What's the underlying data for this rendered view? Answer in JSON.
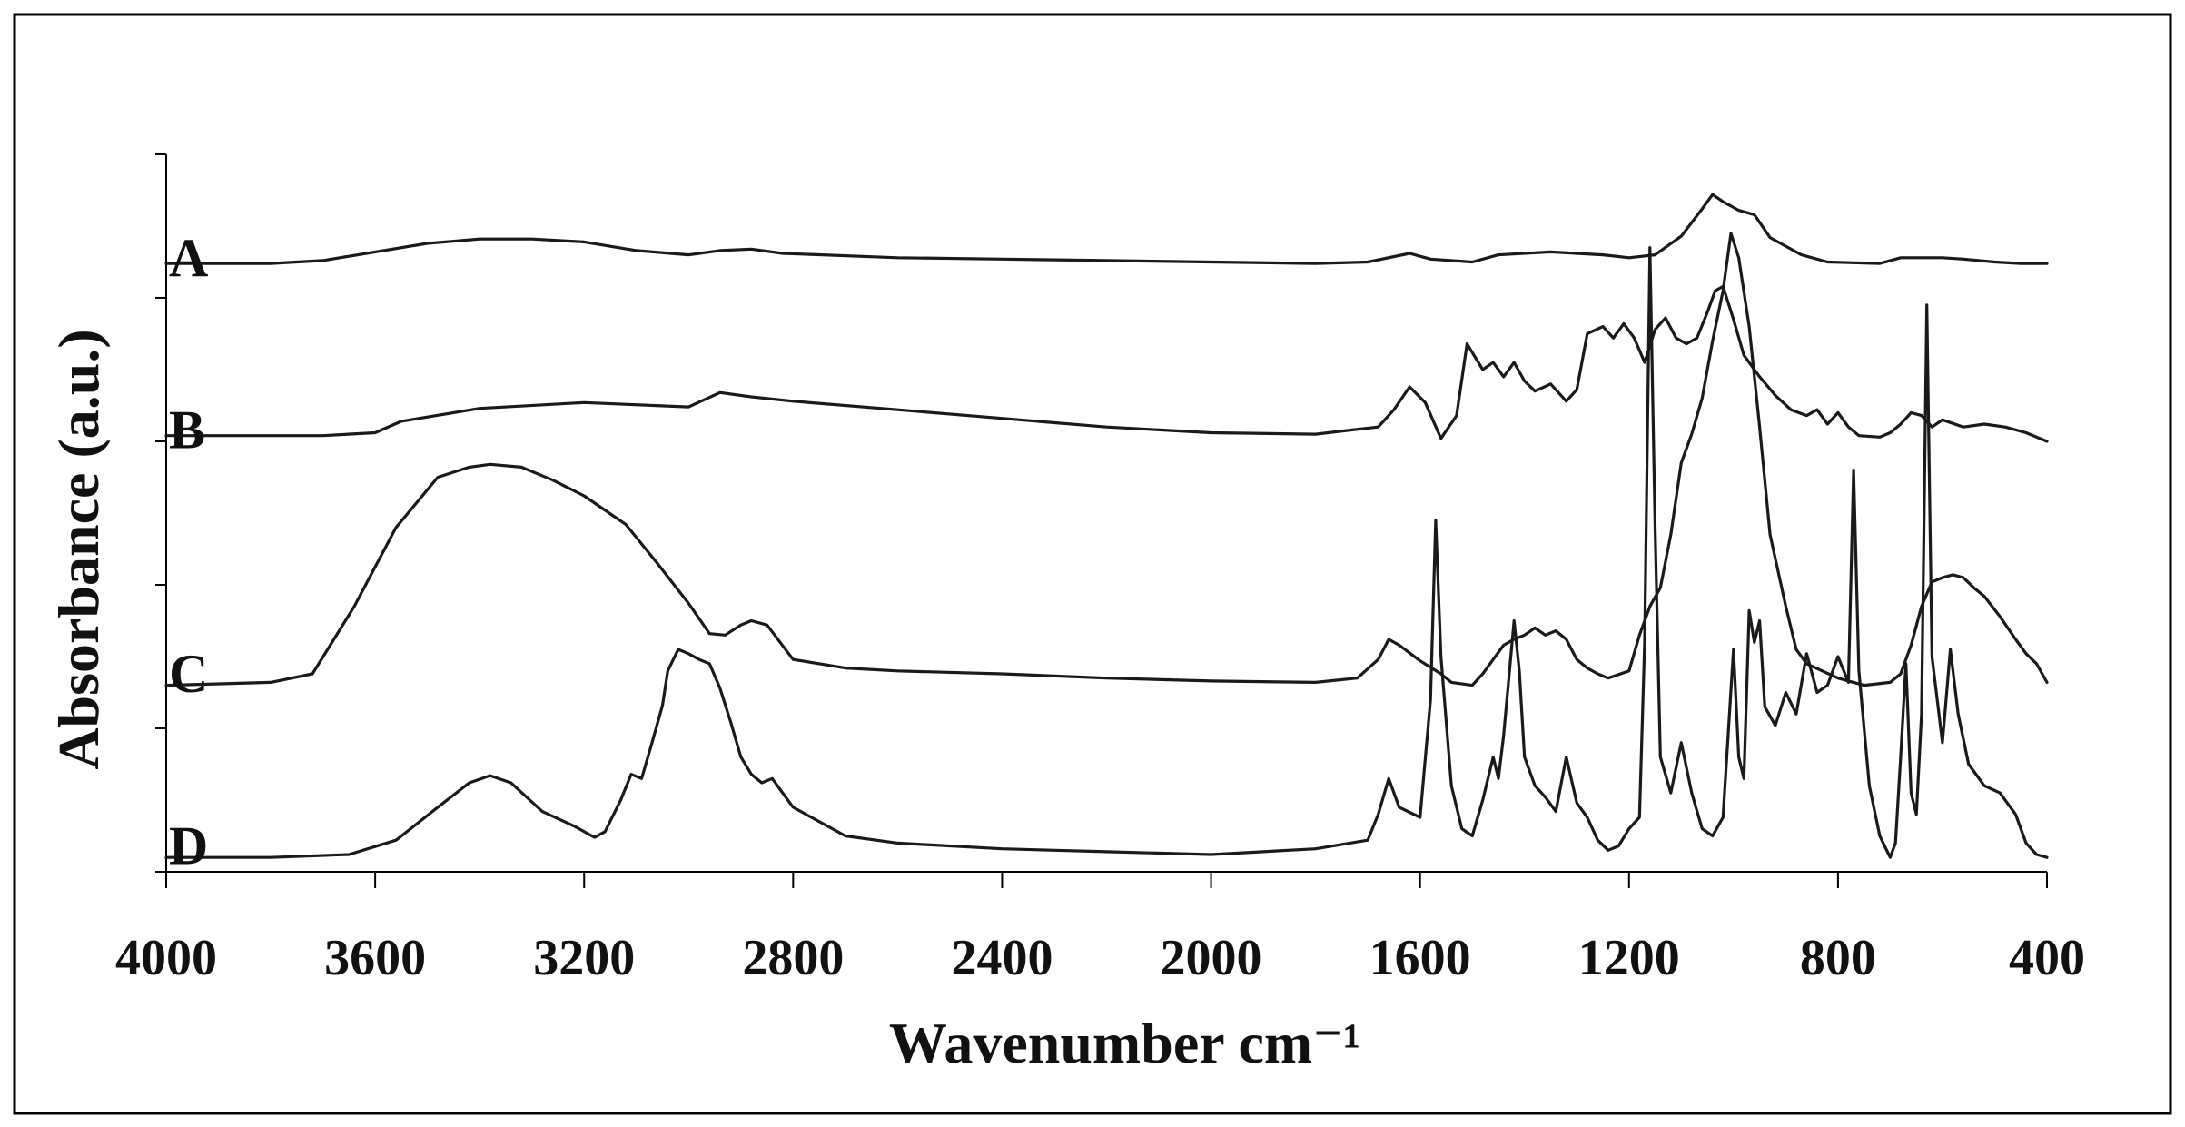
{
  "chart_data": {
    "type": "line",
    "title": "",
    "xlabel": "Wavenumber cm⁻¹",
    "ylabel": "Absorbance (a.u.)",
    "xlim": [
      4000,
      400
    ],
    "x_reversed": true,
    "x_ticks": [
      4000,
      3600,
      3200,
      2800,
      2400,
      2000,
      1600,
      1200,
      800,
      400
    ],
    "ylim": [
      0,
      5
    ],
    "y_ticks": [
      0,
      1,
      2,
      3,
      4,
      5
    ],
    "grid": false,
    "legend": "none",
    "series": [
      {
        "name": "A",
        "label_y": 4.28,
        "points": [
          [
            4000,
            4.24
          ],
          [
            3800,
            4.24
          ],
          [
            3700,
            4.26
          ],
          [
            3600,
            4.32
          ],
          [
            3500,
            4.38
          ],
          [
            3400,
            4.41
          ],
          [
            3300,
            4.41
          ],
          [
            3200,
            4.39
          ],
          [
            3100,
            4.33
          ],
          [
            3000,
            4.3
          ],
          [
            2940,
            4.33
          ],
          [
            2880,
            4.34
          ],
          [
            2820,
            4.31
          ],
          [
            2600,
            4.28
          ],
          [
            2400,
            4.27
          ],
          [
            2200,
            4.26
          ],
          [
            2000,
            4.25
          ],
          [
            1800,
            4.24
          ],
          [
            1700,
            4.25
          ],
          [
            1620,
            4.31
          ],
          [
            1580,
            4.27
          ],
          [
            1500,
            4.25
          ],
          [
            1450,
            4.3
          ],
          [
            1350,
            4.32
          ],
          [
            1250,
            4.3
          ],
          [
            1200,
            4.28
          ],
          [
            1150,
            4.3
          ],
          [
            1100,
            4.43
          ],
          [
            1060,
            4.62
          ],
          [
            1040,
            4.72
          ],
          [
            1020,
            4.67
          ],
          [
            990,
            4.61
          ],
          [
            960,
            4.58
          ],
          [
            930,
            4.42
          ],
          [
            900,
            4.36
          ],
          [
            870,
            4.3
          ],
          [
            820,
            4.25
          ],
          [
            720,
            4.24
          ],
          [
            680,
            4.28
          ],
          [
            600,
            4.28
          ],
          [
            560,
            4.27
          ],
          [
            500,
            4.25
          ],
          [
            450,
            4.24
          ],
          [
            400,
            4.24
          ]
        ]
      },
      {
        "name": "B",
        "label_y": 3.08,
        "points": [
          [
            4000,
            3.04
          ],
          [
            3700,
            3.04
          ],
          [
            3600,
            3.06
          ],
          [
            3550,
            3.14
          ],
          [
            3400,
            3.23
          ],
          [
            3200,
            3.27
          ],
          [
            3000,
            3.24
          ],
          [
            2940,
            3.34
          ],
          [
            2880,
            3.31
          ],
          [
            2800,
            3.28
          ],
          [
            2600,
            3.22
          ],
          [
            2400,
            3.16
          ],
          [
            2200,
            3.1
          ],
          [
            2000,
            3.06
          ],
          [
            1800,
            3.05
          ],
          [
            1730,
            3.08
          ],
          [
            1680,
            3.1
          ],
          [
            1650,
            3.22
          ],
          [
            1620,
            3.38
          ],
          [
            1590,
            3.27
          ],
          [
            1560,
            3.02
          ],
          [
            1530,
            3.18
          ],
          [
            1510,
            3.68
          ],
          [
            1480,
            3.5
          ],
          [
            1460,
            3.55
          ],
          [
            1440,
            3.45
          ],
          [
            1420,
            3.55
          ],
          [
            1400,
            3.42
          ],
          [
            1380,
            3.35
          ],
          [
            1350,
            3.4
          ],
          [
            1320,
            3.28
          ],
          [
            1300,
            3.36
          ],
          [
            1280,
            3.75
          ],
          [
            1250,
            3.8
          ],
          [
            1230,
            3.72
          ],
          [
            1210,
            3.82
          ],
          [
            1190,
            3.72
          ],
          [
            1170,
            3.55
          ],
          [
            1150,
            3.78
          ],
          [
            1130,
            3.86
          ],
          [
            1110,
            3.72
          ],
          [
            1090,
            3.68
          ],
          [
            1070,
            3.72
          ],
          [
            1050,
            3.9
          ],
          [
            1035,
            4.05
          ],
          [
            1020,
            4.08
          ],
          [
            1000,
            3.85
          ],
          [
            980,
            3.6
          ],
          [
            950,
            3.45
          ],
          [
            920,
            3.32
          ],
          [
            890,
            3.22
          ],
          [
            860,
            3.18
          ],
          [
            840,
            3.22
          ],
          [
            820,
            3.12
          ],
          [
            800,
            3.2
          ],
          [
            780,
            3.1
          ],
          [
            760,
            3.04
          ],
          [
            720,
            3.03
          ],
          [
            700,
            3.06
          ],
          [
            680,
            3.12
          ],
          [
            660,
            3.2
          ],
          [
            640,
            3.18
          ],
          [
            620,
            3.1
          ],
          [
            600,
            3.15
          ],
          [
            560,
            3.1
          ],
          [
            520,
            3.12
          ],
          [
            480,
            3.1
          ],
          [
            440,
            3.06
          ],
          [
            400,
            3.0
          ]
        ]
      },
      {
        "name": "C",
        "label_y": 1.38,
        "points": [
          [
            4000,
            1.3
          ],
          [
            3800,
            1.32
          ],
          [
            3720,
            1.38
          ],
          [
            3640,
            1.85
          ],
          [
            3560,
            2.4
          ],
          [
            3480,
            2.75
          ],
          [
            3420,
            2.82
          ],
          [
            3380,
            2.84
          ],
          [
            3320,
            2.82
          ],
          [
            3260,
            2.73
          ],
          [
            3200,
            2.62
          ],
          [
            3120,
            2.42
          ],
          [
            3060,
            2.15
          ],
          [
            3000,
            1.87
          ],
          [
            2960,
            1.66
          ],
          [
            2930,
            1.65
          ],
          [
            2900,
            1.72
          ],
          [
            2880,
            1.75
          ],
          [
            2850,
            1.72
          ],
          [
            2800,
            1.48
          ],
          [
            2700,
            1.42
          ],
          [
            2600,
            1.4
          ],
          [
            2400,
            1.38
          ],
          [
            2200,
            1.35
          ],
          [
            2000,
            1.33
          ],
          [
            1800,
            1.32
          ],
          [
            1720,
            1.35
          ],
          [
            1680,
            1.48
          ],
          [
            1660,
            1.62
          ],
          [
            1640,
            1.58
          ],
          [
            1600,
            1.47
          ],
          [
            1560,
            1.38
          ],
          [
            1540,
            1.32
          ],
          [
            1500,
            1.3
          ],
          [
            1480,
            1.38
          ],
          [
            1460,
            1.48
          ],
          [
            1440,
            1.58
          ],
          [
            1420,
            1.62
          ],
          [
            1400,
            1.65
          ],
          [
            1380,
            1.7
          ],
          [
            1360,
            1.65
          ],
          [
            1340,
            1.68
          ],
          [
            1320,
            1.62
          ],
          [
            1300,
            1.48
          ],
          [
            1280,
            1.42
          ],
          [
            1260,
            1.38
          ],
          [
            1240,
            1.35
          ],
          [
            1200,
            1.4
          ],
          [
            1180,
            1.65
          ],
          [
            1160,
            1.85
          ],
          [
            1140,
            1.98
          ],
          [
            1120,
            2.35
          ],
          [
            1100,
            2.85
          ],
          [
            1080,
            3.05
          ],
          [
            1060,
            3.3
          ],
          [
            1040,
            3.7
          ],
          [
            1020,
            4.05
          ],
          [
            1005,
            4.45
          ],
          [
            990,
            4.28
          ],
          [
            970,
            3.8
          ],
          [
            950,
            3.1
          ],
          [
            930,
            2.35
          ],
          [
            900,
            1.85
          ],
          [
            880,
            1.55
          ],
          [
            860,
            1.45
          ],
          [
            830,
            1.4
          ],
          [
            800,
            1.35
          ],
          [
            780,
            1.33
          ],
          [
            750,
            1.3
          ],
          [
            700,
            1.32
          ],
          [
            680,
            1.38
          ],
          [
            660,
            1.58
          ],
          [
            640,
            1.85
          ],
          [
            620,
            2.02
          ],
          [
            600,
            2.05
          ],
          [
            580,
            2.07
          ],
          [
            560,
            2.05
          ],
          [
            540,
            1.98
          ],
          [
            520,
            1.92
          ],
          [
            490,
            1.78
          ],
          [
            460,
            1.62
          ],
          [
            440,
            1.52
          ],
          [
            420,
            1.45
          ],
          [
            400,
            1.32
          ]
        ]
      },
      {
        "name": "D",
        "label_y": 0.18,
        "points": [
          [
            4000,
            0.1
          ],
          [
            3800,
            0.1
          ],
          [
            3650,
            0.12
          ],
          [
            3560,
            0.22
          ],
          [
            3480,
            0.45
          ],
          [
            3420,
            0.62
          ],
          [
            3380,
            0.67
          ],
          [
            3340,
            0.62
          ],
          [
            3280,
            0.42
          ],
          [
            3220,
            0.32
          ],
          [
            3180,
            0.24
          ],
          [
            3160,
            0.28
          ],
          [
            3130,
            0.5
          ],
          [
            3110,
            0.68
          ],
          [
            3090,
            0.65
          ],
          [
            3070,
            0.9
          ],
          [
            3050,
            1.16
          ],
          [
            3040,
            1.4
          ],
          [
            3020,
            1.55
          ],
          [
            3000,
            1.52
          ],
          [
            2980,
            1.48
          ],
          [
            2960,
            1.45
          ],
          [
            2940,
            1.28
          ],
          [
            2920,
            1.05
          ],
          [
            2900,
            0.8
          ],
          [
            2880,
            0.68
          ],
          [
            2860,
            0.62
          ],
          [
            2840,
            0.65
          ],
          [
            2800,
            0.45
          ],
          [
            2700,
            0.25
          ],
          [
            2600,
            0.2
          ],
          [
            2400,
            0.16
          ],
          [
            2200,
            0.14
          ],
          [
            2000,
            0.12
          ],
          [
            1800,
            0.16
          ],
          [
            1700,
            0.22
          ],
          [
            1680,
            0.4
          ],
          [
            1660,
            0.65
          ],
          [
            1640,
            0.45
          ],
          [
            1600,
            0.38
          ],
          [
            1580,
            1.2
          ],
          [
            1570,
            2.45
          ],
          [
            1560,
            1.5
          ],
          [
            1540,
            0.6
          ],
          [
            1520,
            0.3
          ],
          [
            1500,
            0.25
          ],
          [
            1480,
            0.5
          ],
          [
            1460,
            0.8
          ],
          [
            1450,
            0.65
          ],
          [
            1440,
            0.95
          ],
          [
            1420,
            1.75
          ],
          [
            1410,
            1.4
          ],
          [
            1400,
            0.8
          ],
          [
            1380,
            0.6
          ],
          [
            1360,
            0.52
          ],
          [
            1340,
            0.42
          ],
          [
            1320,
            0.8
          ],
          [
            1300,
            0.48
          ],
          [
            1280,
            0.38
          ],
          [
            1260,
            0.22
          ],
          [
            1240,
            0.15
          ],
          [
            1220,
            0.18
          ],
          [
            1200,
            0.3
          ],
          [
            1180,
            0.38
          ],
          [
            1170,
            1.6
          ],
          [
            1160,
            4.35
          ],
          [
            1150,
            2.4
          ],
          [
            1140,
            0.8
          ],
          [
            1120,
            0.55
          ],
          [
            1100,
            0.9
          ],
          [
            1080,
            0.55
          ],
          [
            1060,
            0.3
          ],
          [
            1040,
            0.25
          ],
          [
            1020,
            0.38
          ],
          [
            1000,
            1.55
          ],
          [
            990,
            0.8
          ],
          [
            980,
            0.65
          ],
          [
            970,
            1.82
          ],
          [
            960,
            1.6
          ],
          [
            950,
            1.75
          ],
          [
            940,
            1.15
          ],
          [
            920,
            1.02
          ],
          [
            900,
            1.25
          ],
          [
            880,
            1.1
          ],
          [
            860,
            1.52
          ],
          [
            840,
            1.25
          ],
          [
            820,
            1.3
          ],
          [
            800,
            1.5
          ],
          [
            780,
            1.32
          ],
          [
            770,
            2.8
          ],
          [
            760,
            1.4
          ],
          [
            740,
            0.6
          ],
          [
            720,
            0.25
          ],
          [
            700,
            0.1
          ],
          [
            690,
            0.2
          ],
          [
            680,
            0.8
          ],
          [
            670,
            1.45
          ],
          [
            660,
            0.55
          ],
          [
            650,
            0.4
          ],
          [
            640,
            1.1
          ],
          [
            630,
            3.95
          ],
          [
            620,
            1.5
          ],
          [
            600,
            0.9
          ],
          [
            585,
            1.55
          ],
          [
            570,
            1.1
          ],
          [
            550,
            0.75
          ],
          [
            520,
            0.6
          ],
          [
            490,
            0.55
          ],
          [
            460,
            0.4
          ],
          [
            440,
            0.2
          ],
          [
            420,
            0.12
          ],
          [
            400,
            0.1
          ]
        ]
      }
    ]
  }
}
